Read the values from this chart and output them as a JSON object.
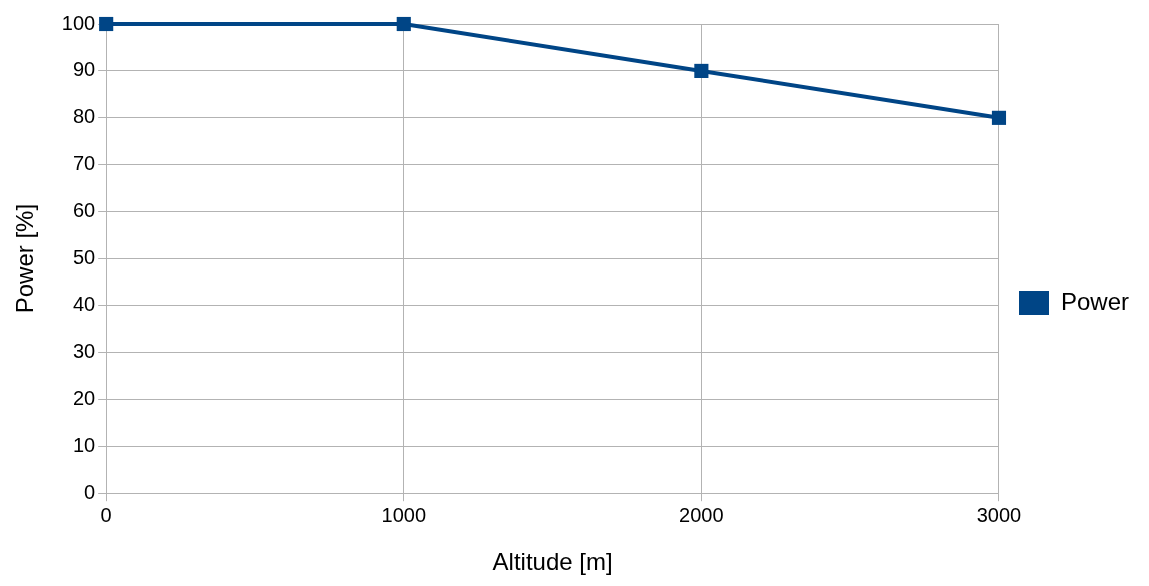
{
  "chart_data": {
    "type": "line",
    "xlabel": "Altitude [m]",
    "ylabel": "Power [%]",
    "x": [
      0,
      1000,
      2000,
      3000
    ],
    "series": [
      {
        "name": "Power",
        "color": "#004586",
        "values": [
          100,
          100,
          90,
          80
        ]
      }
    ],
    "xlim": [
      0,
      3000
    ],
    "xticks": [
      0,
      1000,
      2000,
      3000
    ],
    "ylim": [
      0,
      100
    ],
    "yticks": [
      0,
      10,
      20,
      30,
      40,
      50,
      60,
      70,
      80,
      90,
      100
    ],
    "grid": true,
    "legend": "right",
    "marker": "square",
    "line_style": "solid"
  }
}
